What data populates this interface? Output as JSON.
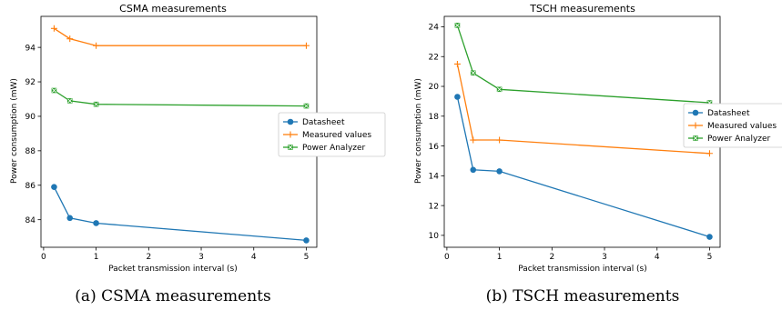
{
  "colors": {
    "Datasheet": "#1f77b4",
    "Measured values": "#ff7f0e",
    "Power Analyzer": "#2ca02c"
  },
  "chart_data": [
    {
      "type": "line",
      "title": "CSMA measurements",
      "xlabel": "Packet transmission interval (s)",
      "ylabel": "Power consumption (mW)",
      "xlim": [
        -0.05,
        5.2
      ],
      "ylim": [
        82.4,
        95.8
      ],
      "xticks": [
        "0",
        "1",
        "2",
        "3",
        "4",
        "5"
      ],
      "yticks": [
        "84",
        "86",
        "88",
        "90",
        "92",
        "94"
      ],
      "legend": "center-right",
      "grid": false,
      "series": [
        {
          "name": "Datasheet",
          "marker": "circle",
          "x": [
            0.2,
            0.5,
            1,
            5
          ],
          "values": [
            85.9,
            84.1,
            83.8,
            82.8
          ]
        },
        {
          "name": "Measured values",
          "marker": "plus",
          "x": [
            0.2,
            0.5,
            1,
            5
          ],
          "values": [
            95.1,
            94.5,
            94.1,
            94.1
          ]
        },
        {
          "name": "Power Analyzer",
          "marker": "x-square",
          "x": [
            0.2,
            0.5,
            1,
            5
          ],
          "values": [
            91.5,
            90.9,
            90.7,
            90.6
          ]
        }
      ]
    },
    {
      "type": "line",
      "title": "TSCH measurements",
      "xlabel": "Packet transmission interval (s)",
      "ylabel": "Power consumption (mW)",
      "xlim": [
        -0.05,
        5.2
      ],
      "ylim": [
        9.2,
        24.7
      ],
      "xticks": [
        "0",
        "1",
        "2",
        "3",
        "4",
        "5"
      ],
      "yticks": [
        "10",
        "12",
        "14",
        "16",
        "18",
        "20",
        "22",
        "24"
      ],
      "legend": "right",
      "grid": false,
      "series": [
        {
          "name": "Datasheet",
          "marker": "circle",
          "x": [
            0.2,
            0.5,
            1,
            5
          ],
          "values": [
            19.3,
            14.4,
            14.3,
            9.9
          ]
        },
        {
          "name": "Measured values",
          "marker": "plus",
          "x": [
            0.2,
            0.5,
            1,
            5
          ],
          "values": [
            21.5,
            16.4,
            16.4,
            15.5
          ]
        },
        {
          "name": "Power Analyzer",
          "marker": "x-square",
          "x": [
            0.2,
            0.5,
            1,
            5
          ],
          "values": [
            24.1,
            20.9,
            19.8,
            18.9
          ]
        }
      ]
    }
  ],
  "captions": [
    "(a) CSMA measurements",
    "(b) TSCH measurements"
  ]
}
